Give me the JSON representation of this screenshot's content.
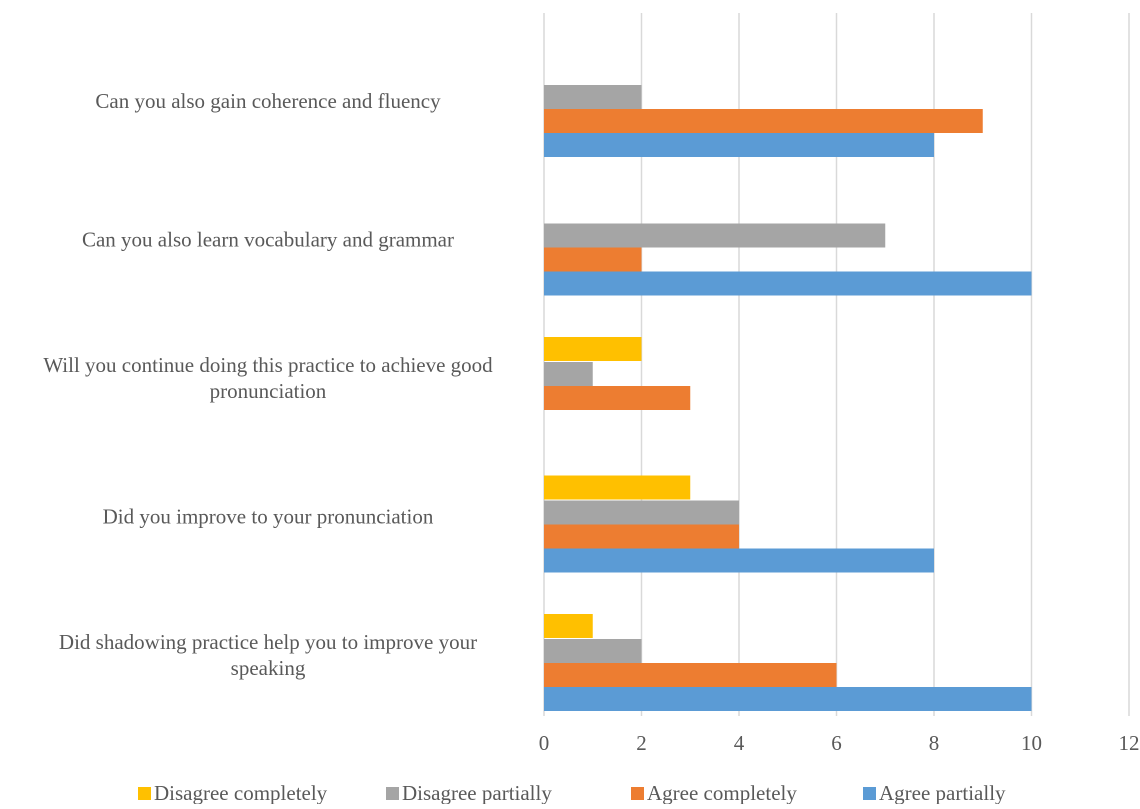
{
  "chart_data": {
    "type": "bar",
    "orientation": "horizontal",
    "title": "",
    "xlabel": "",
    "ylabel": "",
    "categories": [
      "Can you also gain coherence and fluency",
      "Can you also learn vocabulary and grammar",
      "Will you continue doing this practice to achieve good pronunciation",
      "Did you improve  to your pronunciation",
      "Did shadowing practice help you to improve your speaking"
    ],
    "category_label_lines": [
      [
        "Can you also gain coherence and fluency"
      ],
      [
        "Can you also learn vocabulary and grammar"
      ],
      [
        "Will you continue doing this practice to achieve good",
        "pronunciation"
      ],
      [
        "Did you improve  to your pronunciation"
      ],
      [
        "Did shadowing practice help you to improve your",
        "speaking"
      ]
    ],
    "series": [
      {
        "name": "Disagree completely",
        "color": "#FFC000",
        "values": [
          0,
          0,
          2,
          3,
          1
        ]
      },
      {
        "name": "Disagree partially",
        "color": "#A5A5A5",
        "values": [
          2,
          7,
          1,
          4,
          2
        ]
      },
      {
        "name": "Agree completely",
        "color": "#ED7D31",
        "values": [
          9,
          2,
          3,
          4,
          6
        ]
      },
      {
        "name": "Agree partially",
        "color": "#5B9BD5",
        "values": [
          8,
          10,
          0,
          8,
          10
        ]
      }
    ],
    "xlim": [
      0,
      12
    ],
    "x_ticks": [
      "0",
      "2",
      "4",
      "6",
      "8",
      "10",
      "12"
    ],
    "grid": true,
    "legend_position": "bottom"
  },
  "colors": {
    "gridline": "#D9D9D9",
    "text": "#595959"
  }
}
